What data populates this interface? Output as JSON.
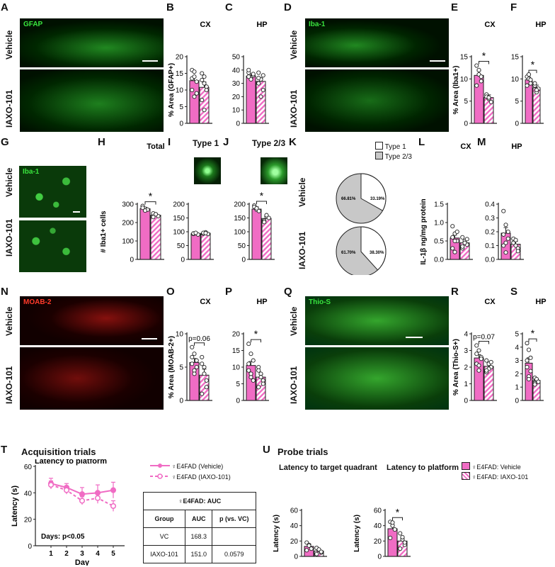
{
  "panel_letters": [
    "A",
    "B",
    "C",
    "D",
    "E",
    "F",
    "G",
    "H",
    "I",
    "J",
    "K",
    "L",
    "M",
    "N",
    "O",
    "P",
    "Q",
    "R",
    "S",
    "T",
    "U"
  ],
  "colors": {
    "bar": "#f06cc4",
    "bar_stroke": "#222",
    "stain_green": "#35d83a",
    "stain_red": "#e8201c",
    "pie_type2": "#c8c8c8"
  },
  "images": {
    "A": {
      "stain": "GFAP",
      "rows": [
        "Vehicle",
        "IAXO-101"
      ]
    },
    "D": {
      "stain": "Iba-1",
      "rows": [
        "Vehicle",
        "IAXO-101"
      ]
    },
    "G": {
      "stain": "Iba-1",
      "rows": [
        "Vehicle",
        "IAXO-101"
      ]
    },
    "N": {
      "stain": "MOAB-2",
      "rows": [
        "Vehicle",
        "IAXO-101"
      ]
    },
    "Q": {
      "stain": "Thio-S",
      "rows": [
        "Vehicle",
        "IAXO-101"
      ]
    },
    "I": {
      "title": "Type 1"
    },
    "J": {
      "title": "Type 2/3"
    }
  },
  "pie_K": {
    "legend": [
      "Type 1",
      "Type 2/3"
    ],
    "rows": [
      {
        "label": "Vehicle",
        "type1_pct": 33.19,
        "type1_text": "33.19%",
        "type2_text": "66.81%"
      },
      {
        "label": "IAXO-101",
        "type1_pct": 38.3,
        "type1_text": "38.30%",
        "type2_text": "61.70%"
      }
    ]
  },
  "chart_data": [
    {
      "panel": "B",
      "type": "bar",
      "title": "CX",
      "ylabel": "% Area (GFAP+)",
      "ylim": [
        0,
        20
      ],
      "yticks": [
        0,
        5,
        10,
        15,
        20
      ],
      "categories": [
        "Vehicle",
        "IAXO-101"
      ],
      "values": [
        12.8,
        10.8
      ],
      "errors": [
        1.2,
        1.6
      ],
      "points": [
        [
          16,
          15.5,
          12.5,
          10,
          8,
          9,
          13.5,
          14
        ],
        [
          15,
          12,
          11,
          7,
          4,
          10,
          13,
          14
        ]
      ],
      "annotation": ""
    },
    {
      "panel": "C",
      "type": "bar",
      "title": "HP",
      "ylim": [
        0,
        50
      ],
      "yticks": [
        0,
        10,
        20,
        30,
        40,
        50
      ],
      "categories": [
        "Vehicle",
        "IAXO-101"
      ],
      "values": [
        35.5,
        31.5
      ],
      "errors": [
        1.5,
        2.5
      ],
      "points": [
        [
          38,
          34,
          36,
          40,
          33,
          37,
          35
        ],
        [
          38,
          33,
          25,
          30,
          20,
          36,
          34
        ]
      ],
      "annotation": ""
    },
    {
      "panel": "E",
      "type": "bar",
      "title": "CX",
      "ylabel": "% Area (Iba1+)",
      "ylim": [
        0,
        15
      ],
      "yticks": [
        0,
        5,
        10,
        15
      ],
      "categories": [
        "Vehicle",
        "IAXO-101"
      ],
      "values": [
        10.8,
        5.8
      ],
      "errors": [
        1.0,
        0.6
      ],
      "points": [
        [
          13,
          12,
          9.5,
          8.5,
          11,
          10.5
        ],
        [
          6.5,
          5.5,
          4.8,
          6,
          5.8
        ]
      ],
      "annotation": "*"
    },
    {
      "panel": "F",
      "type": "bar",
      "title": "HP",
      "ylim": [
        0,
        15
      ],
      "yticks": [
        0,
        5,
        10,
        15
      ],
      "categories": [
        "Vehicle",
        "IAXO-101"
      ],
      "values": [
        9.8,
        8.0
      ],
      "errors": [
        0.6,
        0.6
      ],
      "points": [
        [
          10.5,
          11,
          9,
          8.5,
          10,
          9.8
        ],
        [
          8.5,
          7,
          7.8,
          9,
          7.5
        ]
      ],
      "annotation": "*"
    },
    {
      "panel": "H",
      "type": "bar",
      "title": "Total",
      "ylabel": "# Iba1+ cells",
      "ylim": [
        0,
        300
      ],
      "yticks": [
        0,
        100,
        200,
        300
      ],
      "categories": [
        "Vehicle",
        "IAXO-101"
      ],
      "values": [
        275,
        240
      ],
      "errors": [
        8,
        6
      ],
      "points": [
        [
          290,
          275,
          270,
          280,
          265
        ],
        [
          250,
          245,
          235,
          230,
          245
        ]
      ],
      "annotation": "*"
    },
    {
      "panel": "I",
      "type": "bar",
      "ylim": [
        0,
        200
      ],
      "yticks": [
        0,
        50,
        100,
        150,
        200
      ],
      "categories": [
        "Vehicle",
        "IAXO-101"
      ],
      "values": [
        93,
        95
      ],
      "errors": [
        2,
        2
      ],
      "points": [
        [
          92,
          95,
          90,
          94,
          96
        ],
        [
          93,
          98,
          92,
          96,
          95
        ]
      ],
      "annotation": ""
    },
    {
      "panel": "J",
      "type": "bar",
      "ylim": [
        0,
        200
      ],
      "yticks": [
        0,
        50,
        100,
        150,
        200
      ],
      "categories": [
        "Vehicle",
        "IAXO-101"
      ],
      "values": [
        182,
        148
      ],
      "errors": [
        8,
        6
      ],
      "points": [
        [
          195,
          180,
          175,
          190,
          185
        ],
        [
          140,
          155,
          150,
          135,
          160
        ]
      ],
      "annotation": "*"
    },
    {
      "panel": "L",
      "type": "bar",
      "title": "CX",
      "ylabel": "IL-1β ng/mg protein",
      "ylim": [
        0,
        1.5
      ],
      "yticks": [
        0.0,
        0.5,
        1.0,
        1.5
      ],
      "categories": [
        "Vehicle",
        "IAXO-101"
      ],
      "values": [
        0.58,
        0.45
      ],
      "errors": [
        0.08,
        0.06
      ],
      "points": [
        [
          0.9,
          0.7,
          0.5,
          0.3,
          0.2,
          0.75,
          0.6,
          0.5
        ],
        [
          0.6,
          0.5,
          0.4,
          0.3,
          0.45,
          0.55,
          0.35
        ]
      ],
      "annotation": ""
    },
    {
      "panel": "M",
      "type": "bar",
      "title": "HP",
      "ylim": [
        0,
        0.4
      ],
      "yticks": [
        0.0,
        0.1,
        0.2,
        0.3,
        0.4
      ],
      "categories": [
        "Vehicle",
        "IAXO-101"
      ],
      "values": [
        0.19,
        0.11
      ],
      "errors": [
        0.04,
        0.02
      ],
      "points": [
        [
          0.35,
          0.25,
          0.2,
          0.1,
          0.05,
          0.15,
          0.18,
          0.12
        ],
        [
          0.15,
          0.1,
          0.08,
          0.12,
          0.14,
          0.06
        ]
      ],
      "annotation": ""
    },
    {
      "panel": "O",
      "type": "bar",
      "title": "CX",
      "ylabel": "% Area (MOAB-2+)",
      "ylim": [
        0,
        10
      ],
      "yticks": [
        0,
        5,
        10
      ],
      "categories": [
        "Vehicle",
        "IAXO-101"
      ],
      "values": [
        5.7,
        3.8
      ],
      "errors": [
        0.6,
        0.9
      ],
      "points": [
        [
          8,
          7,
          6,
          5.5,
          4.5,
          5,
          6.5,
          4
        ],
        [
          6.5,
          5,
          3,
          1,
          4,
          2,
          5.5
        ]
      ],
      "annotation": "p=0.06"
    },
    {
      "panel": "P",
      "type": "bar",
      "title": "HP",
      "ylim": [
        0,
        20
      ],
      "yticks": [
        0,
        5,
        10,
        15,
        20
      ],
      "categories": [
        "Vehicle",
        "IAXO-101"
      ],
      "values": [
        10.5,
        7.0
      ],
      "errors": [
        1.2,
        0.8
      ],
      "points": [
        [
          17,
          14,
          12,
          9,
          7,
          6,
          11,
          8
        ],
        [
          10,
          8,
          6,
          4,
          7,
          5,
          9
        ]
      ],
      "annotation": "*"
    },
    {
      "panel": "R",
      "type": "bar",
      "title": "CX",
      "ylabel": "% Area (Thio-S+)",
      "ylim": [
        0,
        4
      ],
      "yticks": [
        0,
        1,
        2,
        3,
        4
      ],
      "categories": [
        "Vehicle",
        "IAXO-101"
      ],
      "values": [
        2.55,
        2.05
      ],
      "errors": [
        0.2,
        0.15
      ],
      "points": [
        [
          3.3,
          3.0,
          2.6,
          2.2,
          1.8,
          2.5,
          2.8,
          2.1
        ],
        [
          2.4,
          2.2,
          2.0,
          1.7,
          1.9,
          2.3,
          1.8
        ]
      ],
      "annotation": "p=0.07"
    },
    {
      "panel": "S",
      "type": "bar",
      "title": "HP",
      "ylim": [
        0,
        5
      ],
      "yticks": [
        0,
        1,
        2,
        3,
        4,
        5
      ],
      "categories": [
        "Vehicle",
        "IAXO-101"
      ],
      "values": [
        2.8,
        1.5
      ],
      "errors": [
        0.4,
        0.1
      ],
      "points": [
        [
          4.3,
          3.8,
          3.2,
          2.5,
          1.8,
          2.2,
          3.0,
          1.6
        ],
        [
          1.7,
          1.5,
          1.4,
          1.3,
          1.6,
          1.4,
          1.2
        ]
      ],
      "annotation": "*"
    },
    {
      "panel": "T",
      "type": "line",
      "title": "Latency to platform",
      "xlabel": "Day",
      "ylabel": "Latency (s)",
      "x": [
        1,
        2,
        3,
        4,
        5
      ],
      "ylim": [
        0,
        60
      ],
      "yticks": [
        0,
        20,
        40,
        60
      ],
      "series": [
        {
          "name": "♀E4FAD (Vehicle)",
          "values": [
            47,
            44,
            39,
            40,
            42
          ],
          "errors": [
            4,
            3,
            5,
            6,
            6
          ],
          "dashed": false
        },
        {
          "name": "♀E4FAD (IAXO-101)",
          "values": [
            46,
            42,
            34,
            36,
            30
          ],
          "errors": [
            3,
            3,
            3,
            4,
            4
          ],
          "dashed": true
        }
      ],
      "annotation": "Days: p<0.05"
    },
    {
      "panel": "U1",
      "type": "bar",
      "title": "Latency to target quadrant",
      "ylabel": "Latency (s)",
      "ylim": [
        0,
        60
      ],
      "yticks": [
        0,
        20,
        40,
        60
      ],
      "categories": [
        "Vehicle",
        "IAXO-101"
      ],
      "values": [
        13,
        7
      ],
      "errors": [
        3,
        2
      ],
      "points": [
        [
          18,
          15,
          10,
          8,
          14
        ],
        [
          11,
          8,
          5,
          3,
          9,
          6
        ]
      ],
      "annotation": ""
    },
    {
      "panel": "U2",
      "type": "bar",
      "title": "Latency to platform",
      "ylabel": "Latency (s)",
      "ylim": [
        0,
        60
      ],
      "yticks": [
        0,
        20,
        40,
        60
      ],
      "categories": [
        "Vehicle",
        "IAXO-101"
      ],
      "values": [
        36,
        20
      ],
      "errors": [
        5,
        4
      ],
      "points": [
        [
          45,
          40,
          35,
          24,
          44
        ],
        [
          30,
          22,
          15,
          10,
          25,
          18
        ]
      ],
      "annotation": "*"
    }
  ],
  "section_T": {
    "title": "Acquisition trials",
    "legend": [
      "♀E4FAD (Vehicle)",
      "♀E4FAD (IAXO-101)"
    ],
    "table": {
      "title": "♀E4FAD: AUC",
      "headers": [
        "Group",
        "AUC",
        "p (vs. VC)"
      ],
      "rows": [
        [
          "VC",
          "168.3",
          ""
        ],
        [
          "IAXO-101",
          "151.0",
          "0.0579"
        ]
      ]
    }
  },
  "section_U": {
    "title": "Probe trials",
    "legend": [
      "♀E4FAD: Vehicle",
      "♀E4FAD: IAXO-101"
    ]
  }
}
